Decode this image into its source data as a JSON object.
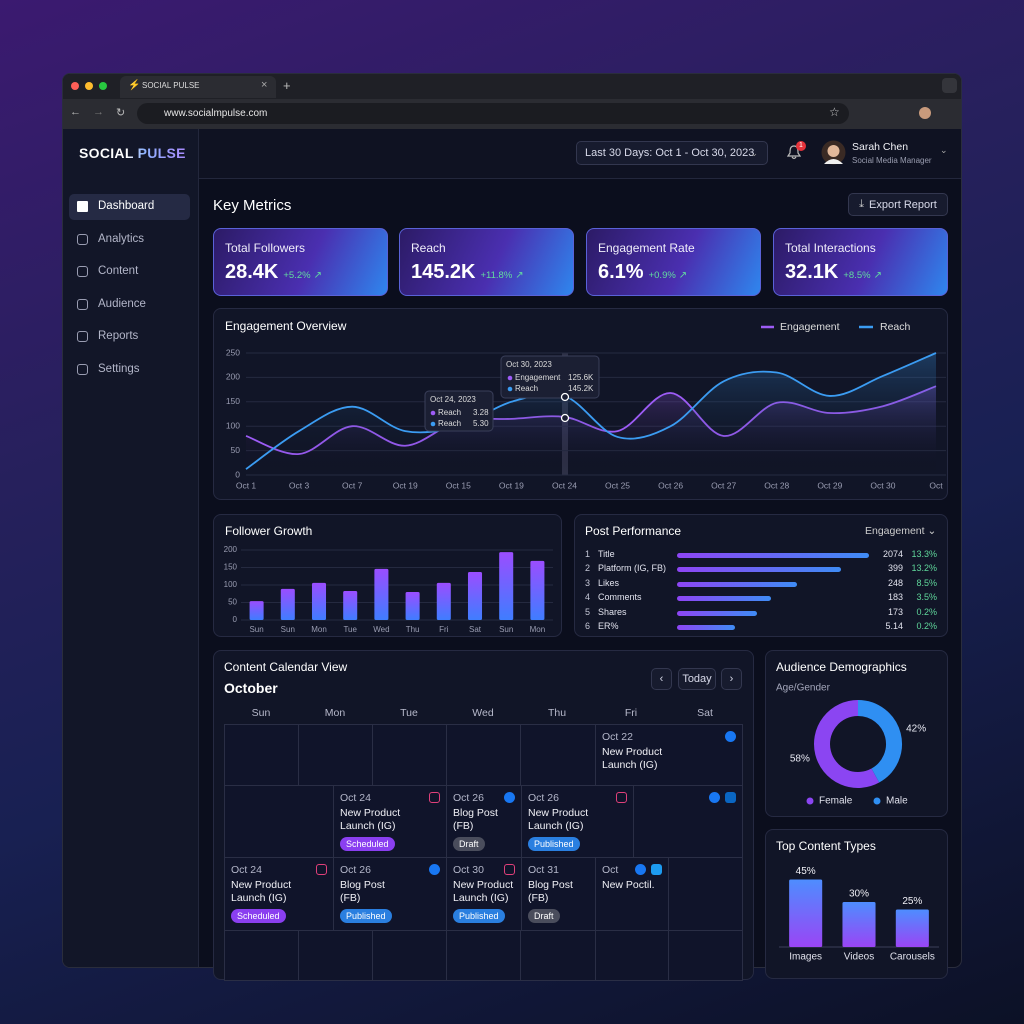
{
  "browser": {
    "tab_title": "SOCIAL PULSE",
    "url": "www.socialmpulse.com"
  },
  "sidebar": {
    "brand": "SOCIAL PULSE",
    "nav": [
      "Dashboard",
      "Analytics",
      "Content",
      "Audience",
      "Reports",
      "Settings"
    ]
  },
  "header": {
    "date_range": "Last 30 Days: Oct 1 - Oct 30, 2023",
    "notifications": 1,
    "user_name": "Sarah Chen",
    "user_role": "Social Media Manager"
  },
  "key_metrics": {
    "title": "Key Metrics",
    "export": "Export Report",
    "cards": [
      {
        "label": "Total Followers",
        "value": "28.4K",
        "change": "+5.2%"
      },
      {
        "label": "Reach",
        "value": "145.2K",
        "change": "+11.8%"
      },
      {
        "label": "Engagement Rate",
        "value": "6.1%",
        "change": "+0.9%"
      },
      {
        "label": "Total Interactions",
        "value": "32.1K",
        "change": "+8.5%"
      }
    ]
  },
  "chart_data": [
    {
      "type": "line",
      "title": "Engagement Overview",
      "categories": [
        "Oct 1",
        "Oct 3",
        "Oct 7",
        "Oct 19",
        "Oct 15",
        "Oct 19",
        "Oct 24",
        "Oct 25",
        "Oct 26",
        "Oct 27",
        "Oct 28",
        "Oct 29",
        "Oct 30",
        "Oct"
      ],
      "series": [
        {
          "name": "Engagement",
          "color": "#9d5cf6",
          "values": [
            80,
            43,
            100,
            60,
            110,
            115,
            119,
            90,
            168,
            80,
            148,
            127,
            141,
            182
          ]
        },
        {
          "name": "Reach",
          "color": "#3b9cf2",
          "values": [
            12,
            90,
            140,
            90,
            100,
            150,
            162,
            78,
            100,
            192,
            210,
            162,
            203,
            250
          ]
        }
      ],
      "ylim": [
        0,
        250
      ],
      "yticks": [
        0,
        50,
        100,
        150,
        200,
        250
      ],
      "grid": true,
      "annotations": [
        {
          "date": "Oct 30, 2023",
          "rows": [
            {
              "name": "Engagement",
              "value": "125.6K"
            },
            {
              "name": "Reach",
              "value": "145.2K"
            }
          ]
        },
        {
          "date": "Oct 24, 2023",
          "rows": [
            {
              "name": "Reach",
              "value": "3.28"
            },
            {
              "name": "Reach",
              "value": "5.30"
            }
          ]
        }
      ]
    },
    {
      "type": "bar",
      "title": "Follower Growth",
      "categories": [
        "Sun",
        "Sun",
        "Mon",
        "Tue",
        "Wed",
        "Thu",
        "Fri",
        "Sat",
        "Sun",
        "Mon"
      ],
      "values": [
        54,
        89,
        106,
        83,
        146,
        80,
        106,
        137,
        194,
        169
      ],
      "gradient": [
        "#9b4dff",
        "#3f7dff"
      ],
      "ylim": [
        0,
        200
      ],
      "yticks": [
        0,
        50,
        100,
        150,
        200
      ],
      "grid": true
    },
    {
      "type": "pie",
      "title": "Audience Demographics",
      "subtitle": "Age/Gender",
      "categories": [
        "Female",
        "Male"
      ],
      "values": [
        58,
        42
      ],
      "value_labels": [
        "58%",
        "42%"
      ],
      "colors": [
        "#8b45f2",
        "#2f8ff2"
      ],
      "legend": "bottom"
    },
    {
      "type": "bar",
      "title": "Top Content Types",
      "categories": [
        "Images",
        "Videos",
        "Carousels"
      ],
      "values": [
        45,
        30,
        25
      ],
      "value_labels": [
        "45%",
        "30%",
        "25%"
      ],
      "gradient": [
        "#4e8dff",
        "#9a45f5"
      ],
      "ylim": [
        0,
        50
      ]
    }
  ],
  "post_performance": {
    "title": "Post Performance",
    "metric": "Engagement",
    "rows": [
      {
        "rank": 1,
        "label": "Title",
        "value": "2074",
        "change": "13.3%"
      },
      {
        "rank": 2,
        "label": "Platform (IG, FB)",
        "value": "399",
        "change": "13.2%"
      },
      {
        "rank": 3,
        "label": "Likes",
        "value": "248",
        "change": "8.5%"
      },
      {
        "rank": 4,
        "label": "Comments",
        "value": "183",
        "change": "3.5%"
      },
      {
        "rank": 5,
        "label": "Shares",
        "value": "173",
        "change": "0.2%"
      },
      {
        "rank": 6,
        "label": "ER%",
        "value": "5.14",
        "change": "0.2%"
      }
    ]
  },
  "calendar": {
    "title": "Content Calendar View",
    "month": "October",
    "today": "Today",
    "weekdays": [
      "Sun",
      "Mon",
      "Tue",
      "Wed",
      "Thu",
      "Fri",
      "Sat"
    ],
    "events": [
      {
        "date": "Oct 22",
        "title": "New Product Launch (IG)"
      },
      {
        "date": "Oct 24",
        "title": "New Product Launch (IG)",
        "status": "Scheduled"
      },
      {
        "date": "Oct 26",
        "title": "Blog Post (FB)",
        "status": "Draft"
      },
      {
        "date": "Oct 26",
        "title": "New Product Launch (IG)",
        "status": "Published"
      },
      {
        "date": "Oct 24",
        "title": "New Product Launch (IG)",
        "status": "Scheduled"
      },
      {
        "date": "Oct 26",
        "title": "Blog Post (FB)",
        "status": "Published"
      },
      {
        "date": "Oct 30",
        "title": "New Product Launch (IG)",
        "status": "Published"
      },
      {
        "date": "Oct 31",
        "title": "Blog Post (FB)",
        "status": "Draft"
      },
      {
        "date": "Oct",
        "title": "New Poctil."
      }
    ]
  }
}
